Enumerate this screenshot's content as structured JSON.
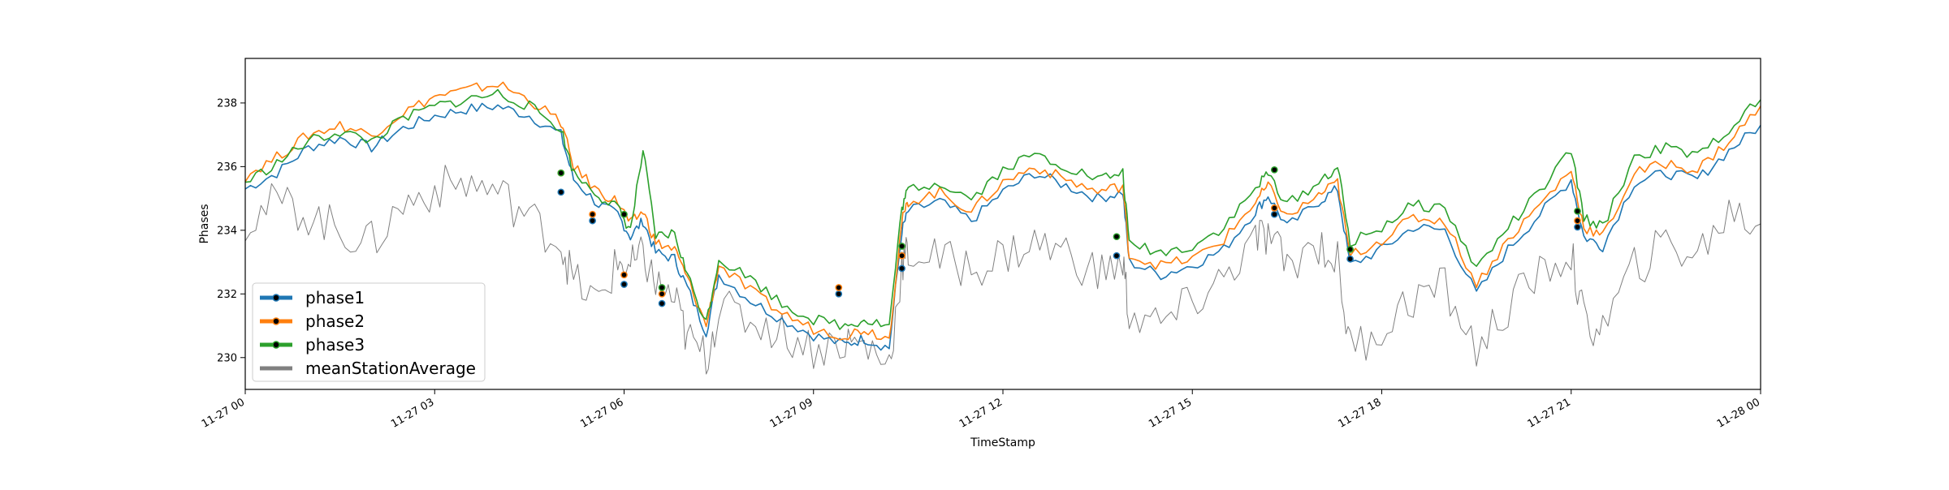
{
  "chart_data": {
    "type": "line",
    "title": "",
    "xlabel": "TimeStamp",
    "ylabel": "Phases",
    "grid": false,
    "legend_position": "lower-left",
    "xlim": [
      "11-27 00",
      "11-28 00"
    ],
    "ylim": [
      229,
      239.4
    ],
    "x_ticks": [
      {
        "hour": 0,
        "label": "11-27 00"
      },
      {
        "hour": 3,
        "label": "11-27 03"
      },
      {
        "hour": 6,
        "label": "11-27 06"
      },
      {
        "hour": 9,
        "label": "11-27 09"
      },
      {
        "hour": 12,
        "label": "11-27 12"
      },
      {
        "hour": 15,
        "label": "11-27 15"
      },
      {
        "hour": 18,
        "label": "11-27 18"
      },
      {
        "hour": 21,
        "label": "11-27 21"
      },
      {
        "hour": 24,
        "label": "11-28 00"
      }
    ],
    "y_ticks": [
      230,
      232,
      234,
      236,
      238
    ],
    "series": [
      {
        "name": "phase1",
        "color": "#1f77b4",
        "x": [
          0,
          0.5,
          1,
          1.5,
          2,
          2.5,
          3,
          3.5,
          4,
          4.5,
          5,
          5.2,
          5.6,
          5.9,
          6.1,
          6.3,
          6.5,
          6.8,
          7.0,
          7.3,
          7.5,
          8,
          8.5,
          9,
          9.5,
          9.8,
          10.2,
          10.4,
          10.5,
          11,
          11.5,
          12,
          12.5,
          13,
          13.5,
          13.9,
          14,
          14.5,
          15,
          15.5,
          16,
          16.2,
          16.5,
          17,
          17.3,
          17.5,
          18,
          18.5,
          19,
          19.5,
          20,
          20.5,
          21,
          21.2,
          21.5,
          22,
          22.5,
          23,
          23.5,
          24
        ],
        "values": [
          235.3,
          235.8,
          236.6,
          236.9,
          236.6,
          237.2,
          237.6,
          237.8,
          237.9,
          237.6,
          237.0,
          235.6,
          234.8,
          234.5,
          233.8,
          234.3,
          233.3,
          233.1,
          232.2,
          230.8,
          232.6,
          231.8,
          231.2,
          230.7,
          230.4,
          230.6,
          230.3,
          234.0,
          234.6,
          234.9,
          234.3,
          235.2,
          235.8,
          235.4,
          235.0,
          235.2,
          233.0,
          232.6,
          232.9,
          233.4,
          234.6,
          235.1,
          234.1,
          234.9,
          235.3,
          232.9,
          233.4,
          234.1,
          234.0,
          232.0,
          233.4,
          234.5,
          235.6,
          233.8,
          233.5,
          235.5,
          235.8,
          235.6,
          236.5,
          237.3
        ]
      },
      {
        "name": "phase2",
        "color": "#ff7f0e",
        "x": [
          0,
          0.5,
          1,
          1.5,
          2,
          2.5,
          3,
          3.5,
          4,
          4.5,
          5,
          5.2,
          5.6,
          5.9,
          6.1,
          6.3,
          6.5,
          6.8,
          7.0,
          7.3,
          7.5,
          8,
          8.5,
          9,
          9.5,
          9.8,
          10.2,
          10.4,
          10.5,
          11,
          11.5,
          12,
          12.5,
          13,
          13.5,
          13.9,
          14,
          14.5,
          15,
          15.5,
          16,
          16.2,
          16.5,
          17,
          17.3,
          17.5,
          18,
          18.5,
          19,
          19.5,
          20,
          20.5,
          21,
          21.2,
          21.5,
          22,
          22.5,
          23,
          23.5,
          24
        ],
        "values": [
          235.7,
          236.3,
          237.0,
          237.3,
          237.0,
          237.7,
          238.2,
          238.4,
          238.6,
          238.1,
          237.4,
          236.0,
          235.2,
          234.9,
          234.2,
          234.6,
          233.6,
          233.4,
          232.5,
          231.0,
          232.9,
          232.1,
          231.4,
          230.9,
          230.7,
          230.9,
          230.6,
          234.3,
          234.9,
          235.2,
          234.6,
          235.5,
          236.0,
          235.6,
          235.2,
          235.4,
          233.2,
          232.9,
          233.1,
          233.7,
          234.9,
          235.4,
          234.4,
          235.1,
          235.5,
          233.2,
          233.7,
          234.4,
          234.3,
          232.3,
          233.7,
          234.8,
          235.9,
          234.1,
          233.8,
          235.8,
          236.1,
          235.9,
          236.8,
          237.9
        ]
      },
      {
        "name": "phase3",
        "color": "#2ca02c",
        "x": [
          0,
          0.5,
          1,
          1.5,
          2,
          2.5,
          3,
          3.5,
          4,
          4.5,
          5,
          5.2,
          5.6,
          5.9,
          6.1,
          6.3,
          6.5,
          6.8,
          7.0,
          7.3,
          7.5,
          8,
          8.5,
          9,
          9.5,
          9.8,
          10.2,
          10.4,
          10.5,
          11,
          11.5,
          12,
          12.5,
          13,
          13.5,
          13.9,
          14,
          14.5,
          15,
          15.5,
          16,
          16.2,
          16.5,
          17,
          17.3,
          17.5,
          18,
          18.5,
          19,
          19.5,
          20,
          20.5,
          21,
          21.2,
          21.5,
          22,
          22.5,
          23,
          23.5,
          24
        ],
        "values": [
          235.5,
          236.1,
          236.8,
          237.1,
          236.8,
          237.5,
          237.9,
          238.1,
          238.3,
          237.9,
          237.2,
          235.8,
          235.1,
          234.7,
          234.0,
          236.5,
          233.8,
          233.9,
          232.6,
          231.1,
          233.1,
          232.5,
          231.7,
          231.2,
          231.0,
          231.2,
          231.0,
          234.7,
          235.3,
          235.5,
          235.0,
          235.9,
          236.4,
          236.0,
          235.6,
          235.8,
          233.6,
          233.3,
          233.5,
          234.1,
          235.3,
          235.8,
          234.8,
          235.5,
          236.0,
          233.6,
          234.1,
          234.8,
          234.7,
          232.8,
          234.1,
          235.2,
          236.5,
          234.4,
          234.1,
          236.3,
          236.6,
          236.3,
          237.2,
          238.1
        ]
      },
      {
        "name": "meanStationAverage",
        "color": "#808080",
        "x": [
          0,
          0.5,
          1,
          1.5,
          2,
          2.5,
          3,
          3.5,
          4,
          4.5,
          5,
          5.2,
          5.6,
          5.9,
          6.1,
          6.3,
          6.5,
          6.8,
          7.0,
          7.3,
          7.5,
          8,
          8.5,
          9,
          9.5,
          9.8,
          10.2,
          10.4,
          10.5,
          11,
          11.5,
          12,
          12.5,
          13,
          13.5,
          13.9,
          14,
          14.5,
          15,
          15.5,
          16,
          16.2,
          16.5,
          17,
          17.3,
          17.5,
          18,
          18.5,
          19,
          19.5,
          20,
          20.5,
          21,
          21.2,
          21.5,
          22,
          22.5,
          23,
          23.5,
          24
        ],
        "values": [
          234.3,
          234.9,
          234.5,
          234.0,
          233.6,
          234.8,
          235.3,
          235.5,
          235.2,
          234.4,
          233.6,
          232.4,
          231.7,
          233.0,
          232.8,
          233.2,
          232.3,
          231.8,
          230.6,
          230.0,
          231.5,
          231.2,
          230.8,
          230.3,
          230.5,
          230.4,
          229.8,
          232.9,
          233.3,
          233.1,
          232.8,
          233.2,
          233.6,
          233.3,
          232.6,
          233.0,
          231.3,
          231.0,
          231.7,
          232.5,
          233.7,
          233.8,
          232.9,
          233.6,
          233.0,
          230.3,
          230.9,
          231.9,
          232.2,
          230.2,
          231.6,
          232.6,
          233.3,
          231.1,
          230.9,
          232.8,
          233.6,
          233.2,
          234.6,
          234.2
        ]
      }
    ],
    "markers": [
      {
        "series": "phase1",
        "x": 5.0,
        "y": 235.2
      },
      {
        "series": "phase2",
        "x": 5.0,
        "y": 235.8
      },
      {
        "series": "phase3",
        "x": 5.0,
        "y": 235.8
      },
      {
        "series": "phase1",
        "x": 5.5,
        "y": 234.3
      },
      {
        "series": "phase2",
        "x": 5.5,
        "y": 234.5
      },
      {
        "series": "phase1",
        "x": 6.0,
        "y": 232.3
      },
      {
        "series": "phase2",
        "x": 6.0,
        "y": 232.6
      },
      {
        "series": "phase3",
        "x": 6.0,
        "y": 234.5
      },
      {
        "series": "phase1",
        "x": 6.6,
        "y": 231.7
      },
      {
        "series": "phase2",
        "x": 6.6,
        "y": 232.0
      },
      {
        "series": "phase3",
        "x": 6.6,
        "y": 232.2
      },
      {
        "series": "phase1",
        "x": 9.4,
        "y": 232.0
      },
      {
        "series": "phase2",
        "x": 9.4,
        "y": 232.2
      },
      {
        "series": "phase1",
        "x": 10.4,
        "y": 232.8
      },
      {
        "series": "phase2",
        "x": 10.4,
        "y": 233.2
      },
      {
        "series": "phase3",
        "x": 10.4,
        "y": 233.5
      },
      {
        "series": "phase1",
        "x": 13.8,
        "y": 233.2
      },
      {
        "series": "phase3",
        "x": 13.8,
        "y": 233.8
      },
      {
        "series": "phase1",
        "x": 16.3,
        "y": 234.5
      },
      {
        "series": "phase2",
        "x": 16.3,
        "y": 234.7
      },
      {
        "series": "phase3",
        "x": 16.3,
        "y": 235.9
      },
      {
        "series": "phase1",
        "x": 17.5,
        "y": 233.1
      },
      {
        "series": "phase3",
        "x": 17.5,
        "y": 233.4
      },
      {
        "series": "phase1",
        "x": 21.1,
        "y": 234.1
      },
      {
        "series": "phase2",
        "x": 21.1,
        "y": 234.3
      },
      {
        "series": "phase3",
        "x": 21.1,
        "y": 234.6
      }
    ]
  }
}
